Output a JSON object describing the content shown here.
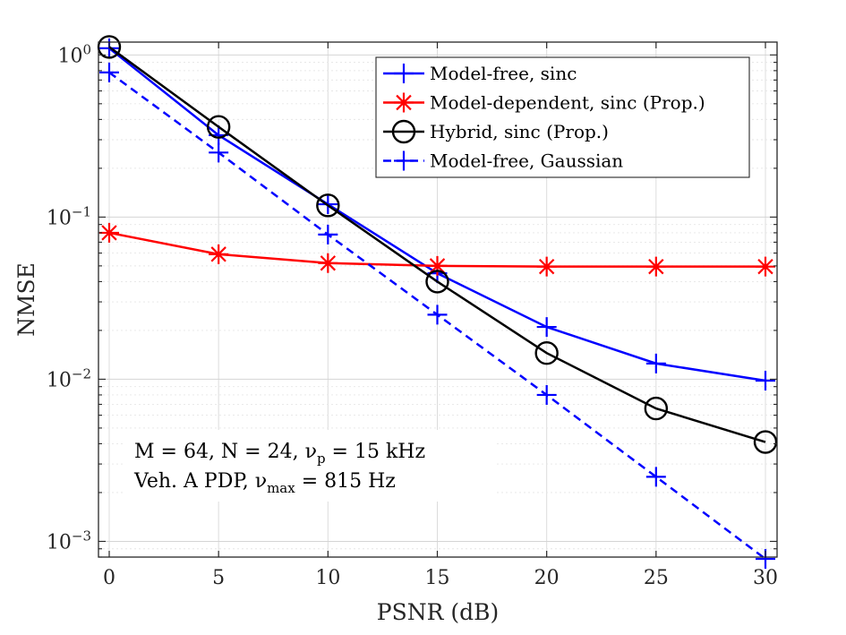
{
  "chart_data": {
    "type": "line",
    "xlabel": "PSNR (dB)",
    "ylabel": "NMSE",
    "xlim": [
      0,
      30
    ],
    "ylim": [
      0.0008,
      1.2
    ],
    "yscale": "log",
    "grid": true,
    "legend_position": "top-right",
    "x": [
      0,
      5,
      10,
      15,
      20,
      25,
      30
    ],
    "x_ticks": [
      0,
      5,
      10,
      15,
      20,
      25,
      30
    ],
    "x_tick_labels": [
      "0",
      "5",
      "10",
      "15",
      "20",
      "25",
      "30"
    ],
    "y_ticks": [
      0.001,
      0.01,
      0.1,
      1
    ],
    "y_tick_labels": [
      {
        "base": "10",
        "exp": "−3"
      },
      {
        "base": "10",
        "exp": "−2"
      },
      {
        "base": "10",
        "exp": "−1"
      },
      {
        "base": "10",
        "exp": "0"
      }
    ],
    "series": [
      {
        "name": "Model-free, sinc",
        "color": "#0000ff",
        "line": "solid",
        "marker": "plus",
        "values": [
          1.1,
          0.32,
          0.12,
          0.045,
          0.021,
          0.0125,
          0.0098
        ]
      },
      {
        "name": "Model-dependent, sinc (Prop.)",
        "color": "#ff0000",
        "line": "solid",
        "marker": "asterisk",
        "values": [
          0.08,
          0.059,
          0.052,
          0.05,
          0.0495,
          0.0495,
          0.0495
        ]
      },
      {
        "name": "Hybrid, sinc (Prop.)",
        "color": "#000000",
        "line": "solid",
        "marker": "circle",
        "values": [
          1.12,
          0.36,
          0.118,
          0.04,
          0.0145,
          0.0066,
          0.0041
        ]
      },
      {
        "name": "Model-free, Gaussian",
        "color": "#0000ff",
        "line": "dashed",
        "marker": "plus",
        "values": [
          0.78,
          0.25,
          0.078,
          0.025,
          0.008,
          0.0025,
          0.00078
        ]
      }
    ],
    "annotations": [
      {
        "pre": "M = 64, N = 24, ν",
        "sub": "p",
        "post": " = 15 kHz"
      },
      {
        "pre": "Veh. A PDP, ν",
        "sub": "max",
        "post": " = 815 Hz"
      }
    ]
  }
}
